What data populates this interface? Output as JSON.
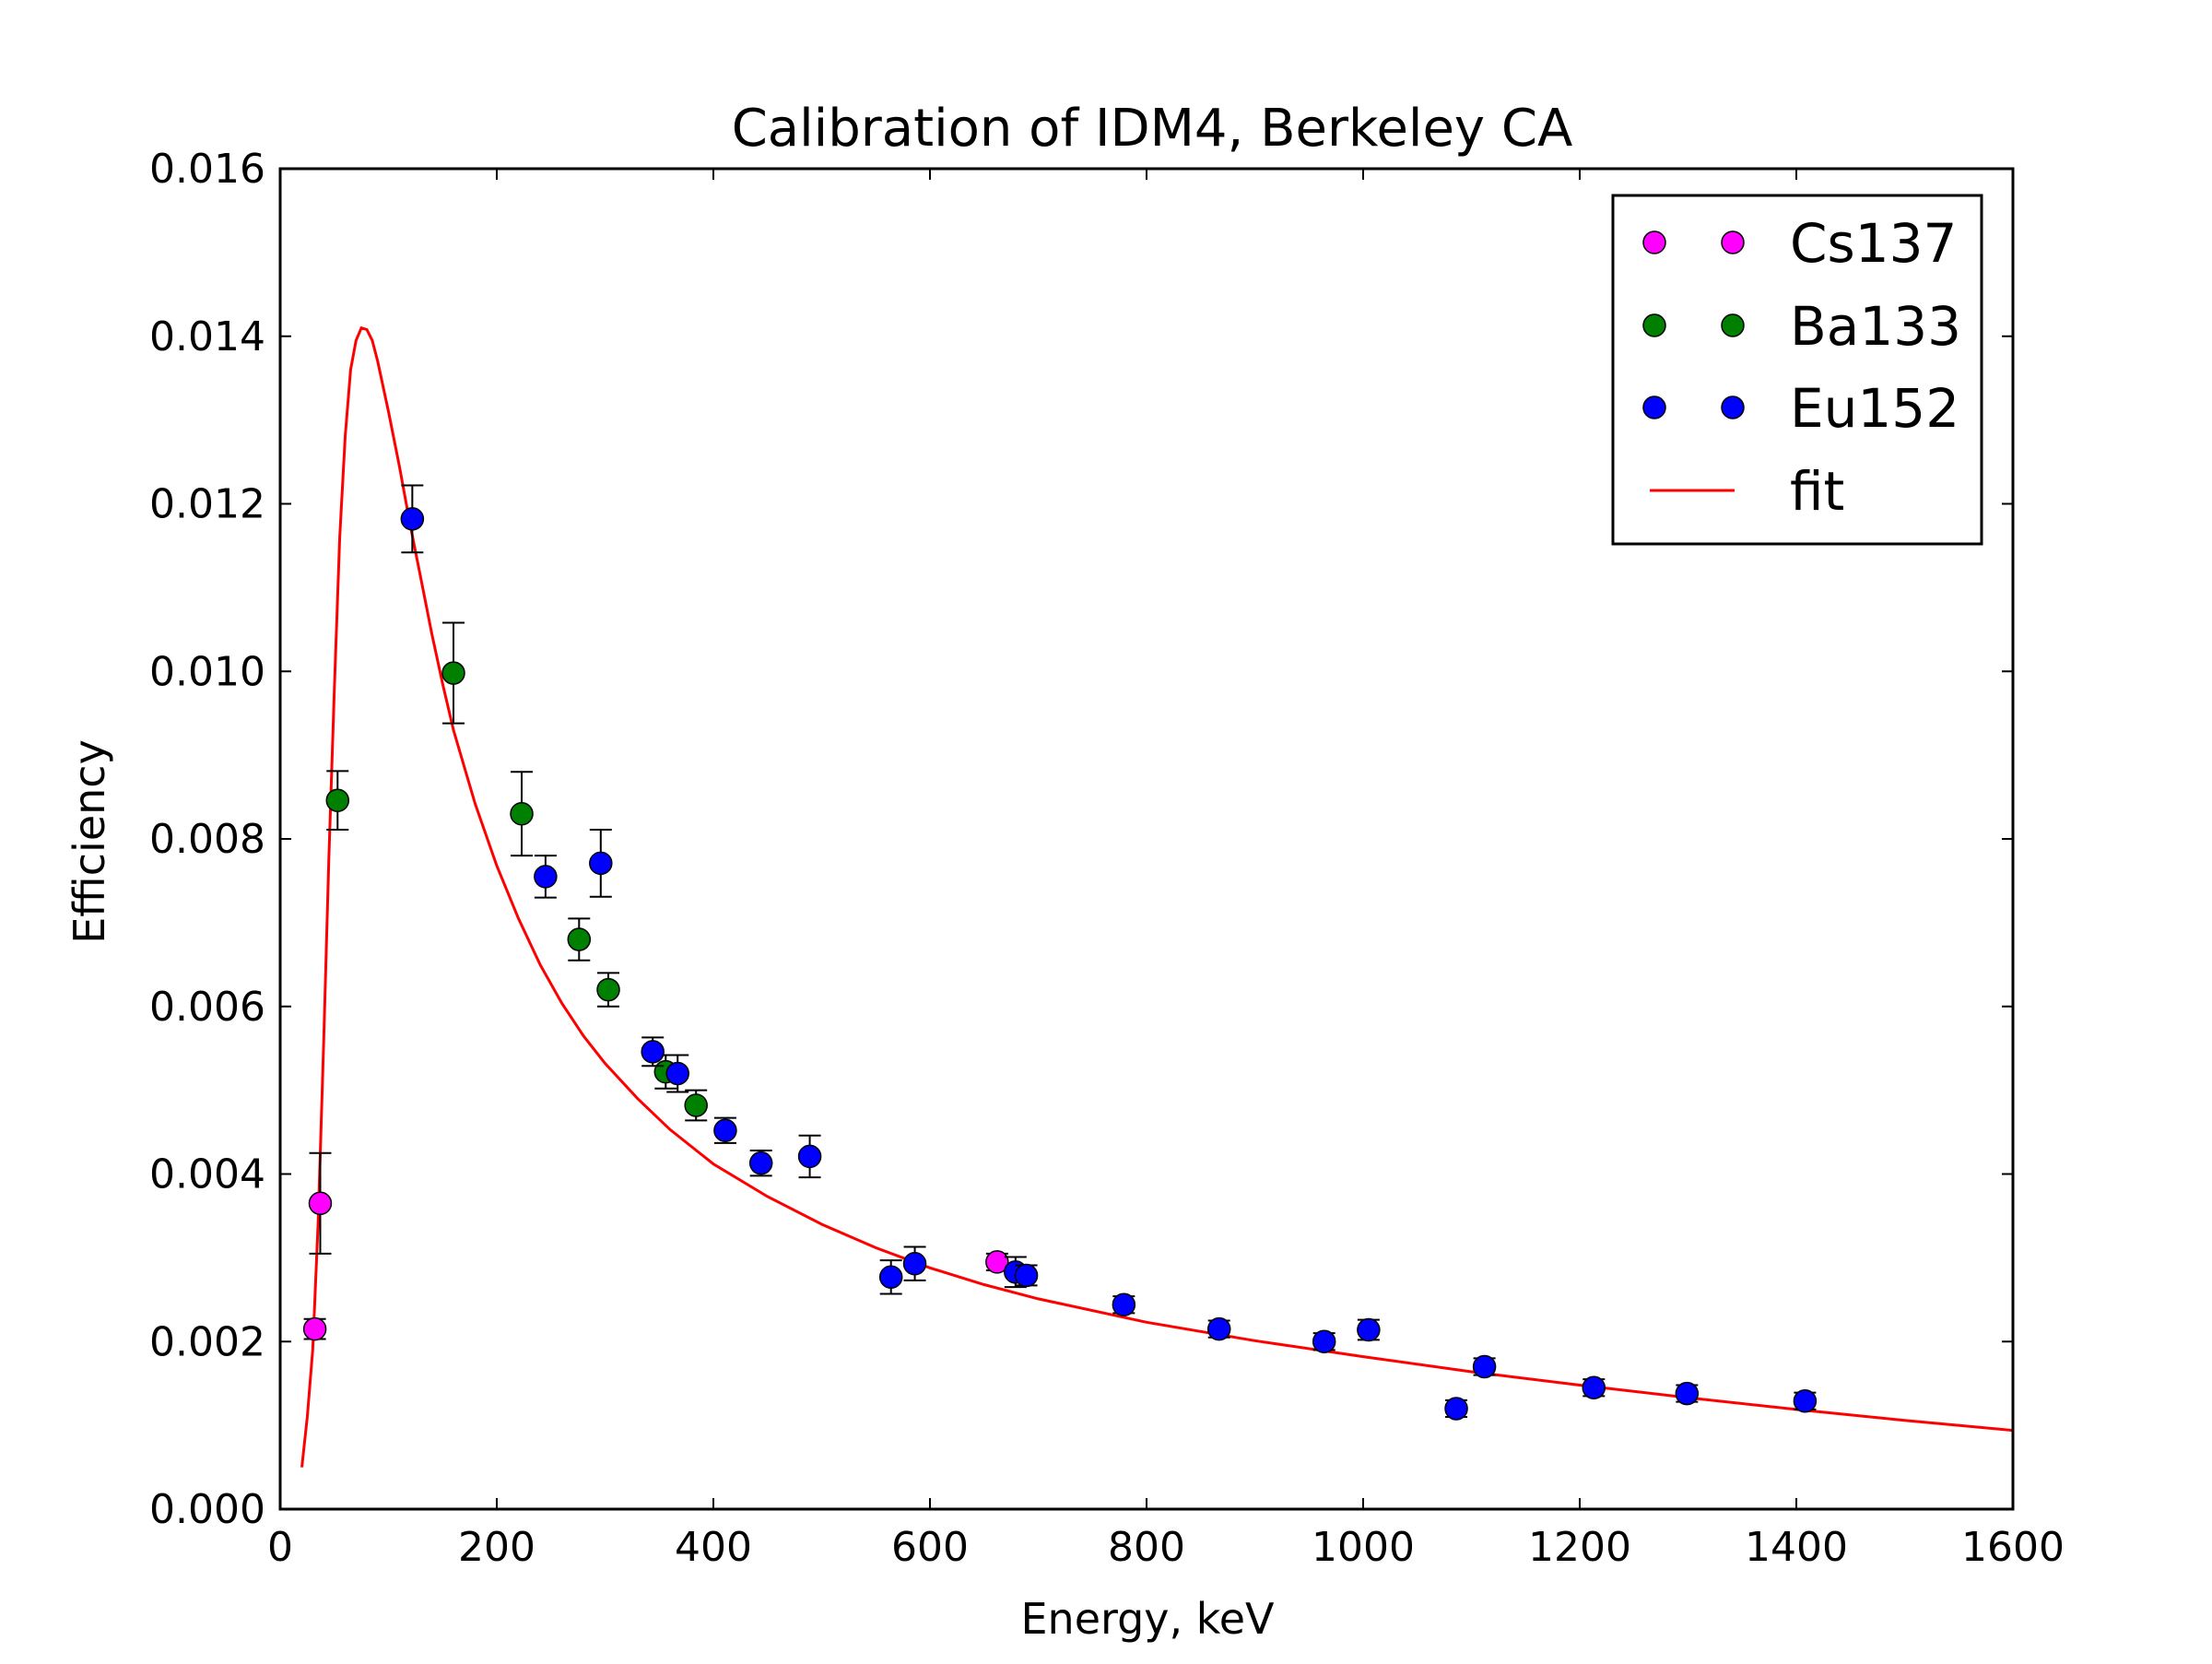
{
  "chart_data": {
    "type": "scatter",
    "title": "Calibration of IDM4, Berkeley CA",
    "xlabel": "Energy, keV",
    "ylabel": "Efficiency",
    "xlim": [
      0,
      1600
    ],
    "ylim": [
      0,
      0.016
    ],
    "xticks": [
      0,
      200,
      400,
      600,
      800,
      1000,
      1200,
      1400,
      1600
    ],
    "xtick_labels": [
      "0",
      "200",
      "400",
      "600",
      "800",
      "1000",
      "1200",
      "1400",
      "1600"
    ],
    "yticks": [
      0,
      0.002,
      0.004,
      0.006,
      0.008,
      0.01,
      0.012,
      0.014,
      0.016
    ],
    "ytick_labels": [
      "0.000",
      "0.002",
      "0.004",
      "0.006",
      "0.008",
      "0.010",
      "0.012",
      "0.014",
      "0.016"
    ],
    "grid": false,
    "legend_position": "top-right",
    "series": [
      {
        "name": "Cs137",
        "kind": "scatter",
        "color": "#ff00ff",
        "points": [
          {
            "x": 32,
            "y": 0.00215,
            "err": 0.00012
          },
          {
            "x": 37,
            "y": 0.00365,
            "err": 0.0006
          },
          {
            "x": 662,
            "y": 0.00295,
            "err": 0.0001
          }
        ]
      },
      {
        "name": "Ba133",
        "kind": "scatter",
        "color": "#008000",
        "points": [
          {
            "x": 53,
            "y": 0.00846,
            "err": 0.00035
          },
          {
            "x": 160,
            "y": 0.00998,
            "err": 0.0006
          },
          {
            "x": 223,
            "y": 0.0083,
            "err": 0.0005
          },
          {
            "x": 276,
            "y": 0.0068,
            "err": 0.00025
          },
          {
            "x": 303,
            "y": 0.0062,
            "err": 0.0002
          },
          {
            "x": 356,
            "y": 0.00522,
            "err": 0.0002
          },
          {
            "x": 384,
            "y": 0.00482,
            "err": 0.00018
          }
        ]
      },
      {
        "name": "Eu152",
        "kind": "scatter",
        "color": "#0000ff",
        "points": [
          {
            "x": 122,
            "y": 0.01182,
            "err": 0.0004
          },
          {
            "x": 245,
            "y": 0.00755,
            "err": 0.00025
          },
          {
            "x": 296,
            "y": 0.00771,
            "err": 0.0004
          },
          {
            "x": 344,
            "y": 0.00546,
            "err": 0.00017
          },
          {
            "x": 367,
            "y": 0.0052,
            "err": 0.00022
          },
          {
            "x": 411,
            "y": 0.00452,
            "err": 0.00015
          },
          {
            "x": 444,
            "y": 0.00413,
            "err": 0.00015
          },
          {
            "x": 489,
            "y": 0.00421,
            "err": 0.00025
          },
          {
            "x": 564,
            "y": 0.00277,
            "err": 0.0002
          },
          {
            "x": 586,
            "y": 0.00293,
            "err": 0.0002
          },
          {
            "x": 679,
            "y": 0.00283,
            "err": 0.00018
          },
          {
            "x": 689,
            "y": 0.00279,
            "err": 0.00012
          },
          {
            "x": 779,
            "y": 0.00244,
            "err": 0.0001
          },
          {
            "x": 867,
            "y": 0.00215,
            "err": 0.0001
          },
          {
            "x": 964,
            "y": 0.002,
            "err": 0.0001
          },
          {
            "x": 1005,
            "y": 0.00214,
            "err": 0.00012
          },
          {
            "x": 1086,
            "y": 0.0012,
            "err": 0.0001
          },
          {
            "x": 1112,
            "y": 0.0017,
            "err": 0.0001
          },
          {
            "x": 1213,
            "y": 0.00145,
            "err": 0.0001
          },
          {
            "x": 1299,
            "y": 0.00138,
            "err": 0.0001
          },
          {
            "x": 1408,
            "y": 0.00129,
            "err": 0.0001
          }
        ]
      },
      {
        "name": "fit",
        "kind": "line",
        "color": "#ff0000",
        "x": [
          20,
          25,
          30,
          35,
          40,
          45,
          50,
          55,
          60,
          65,
          70,
          75,
          80,
          85,
          90,
          100,
          110,
          120,
          130,
          140,
          150,
          160,
          180,
          200,
          220,
          240,
          260,
          280,
          300,
          330,
          360,
          400,
          450,
          500,
          550,
          600,
          650,
          700,
          800,
          900,
          1000,
          1100,
          1200,
          1300,
          1400,
          1500,
          1600
        ],
        "y": [
          0.0005,
          0.0011,
          0.0019,
          0.0034,
          0.0055,
          0.0078,
          0.0098,
          0.0116,
          0.0128,
          0.0136,
          0.01395,
          0.0141,
          0.01408,
          0.01395,
          0.0137,
          0.0131,
          0.01245,
          0.01175,
          0.0111,
          0.01045,
          0.00985,
          0.0093,
          0.00842,
          0.00768,
          0.00705,
          0.0065,
          0.00604,
          0.00565,
          0.00532,
          0.0049,
          0.00453,
          0.00412,
          0.00373,
          0.0034,
          0.00312,
          0.00288,
          0.00268,
          0.00251,
          0.00223,
          0.00201,
          0.00182,
          0.00164,
          0.00148,
          0.00133,
          0.00119,
          0.00106,
          0.00094
        ]
      }
    ]
  }
}
